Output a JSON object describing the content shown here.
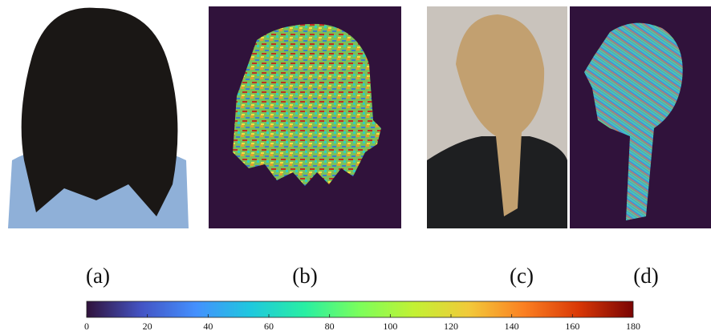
{
  "panels": [
    {
      "label": "(a)"
    },
    {
      "label": "(b)"
    },
    {
      "label": "(c)"
    },
    {
      "label": "(d)"
    }
  ],
  "colorbar": {
    "lim": [
      0,
      180
    ],
    "ticks": [
      0,
      20,
      40,
      60,
      80,
      100,
      120,
      140,
      160,
      180
    ]
  }
}
